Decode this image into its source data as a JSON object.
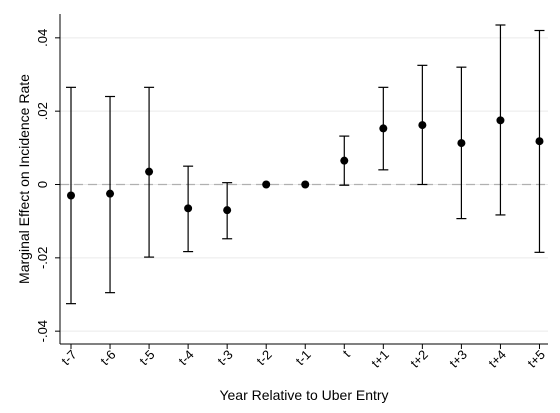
{
  "chart_data": {
    "type": "scatter",
    "subtype": "coefficient-plot-with-error-bars",
    "title": "",
    "xlabel": "Year Relative to Uber Entry",
    "ylabel": "Marginal Effect on Incidence Rate",
    "categories": [
      "t-7",
      "t-6",
      "t-5",
      "t-4",
      "t-3",
      "t-2",
      "t-1",
      "t",
      "t+1",
      "t+2",
      "t+3",
      "t+4",
      "t+5"
    ],
    "estimates": [
      -0.003,
      -0.0025,
      0.0035,
      -0.0065,
      -0.007,
      0.0,
      0.0,
      0.0065,
      0.0153,
      0.0162,
      0.0113,
      0.0175,
      0.0118
    ],
    "ci_lower": [
      -0.0325,
      -0.0295,
      -0.0198,
      -0.0183,
      -0.0148,
      0.0,
      0.0,
      -0.0002,
      0.004,
      0.0,
      -0.0093,
      -0.0083,
      -0.0185
    ],
    "ci_upper": [
      0.0265,
      0.024,
      0.0265,
      0.005,
      0.0005,
      0.0,
      0.0,
      0.0132,
      0.0265,
      0.0325,
      0.032,
      0.0435,
      0.042
    ],
    "ylim": [
      -0.0435,
      0.0465
    ],
    "yticks": [
      -0.04,
      -0.02,
      0,
      0.02,
      0.04
    ],
    "ytick_labels": [
      "-.04",
      "-.02",
      "0",
      ".02",
      ".04"
    ],
    "reference_line": {
      "y": 0,
      "style": "dashed"
    },
    "grid": "horizontal",
    "legend": "none",
    "colors": {
      "marker": "#000000",
      "errorbar": "#000000",
      "reference_line": "#b0b0b0",
      "grid": "#eaeaea",
      "axis": "#000000"
    }
  }
}
